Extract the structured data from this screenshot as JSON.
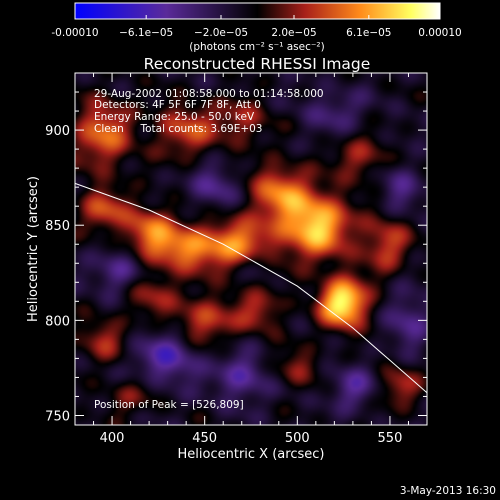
{
  "chart_data": {
    "type": "heatmap",
    "title": "Reconstructed RHESSI Image",
    "xlabel": "Heliocentric X (arcsec)",
    "ylabel": "Heliocentric Y (arcsec)",
    "xlim": [
      380,
      570
    ],
    "ylim": [
      745,
      930
    ],
    "x_ticks": [
      400,
      450,
      500,
      550
    ],
    "y_ticks": [
      750,
      800,
      850,
      900
    ],
    "colorbar": {
      "range": [
        -0.0001,
        0.0001
      ],
      "tick_values": [
        -0.0001,
        -6.1e-05,
        -2e-05,
        2e-05,
        6.1e-05,
        0.0001
      ],
      "tick_labels": [
        "-0.00010",
        "−6.1e−05",
        "−2.0e−05",
        "2.0e−05",
        "6.1e−05",
        "0.00010"
      ],
      "unit_label": "(photons cm⁻² s⁻¹ asec⁻²)",
      "colors": [
        "#0000ff",
        "#5a2a9a",
        "#000000",
        "#a8201a",
        "#ff8a1a",
        "#ffff60",
        "#ffffff"
      ]
    },
    "info_lines": [
      "29-Aug-2002 01:08:58.000 to 01:14:58.000",
      "Detectors: 4F 5F 6F 7F 8F, Att 0",
      "Energy Range: 25.0 - 50.0 keV",
      "Clean     Total counts: 3.69E+03"
    ],
    "peak_label": "Position of Peak = [526,809]",
    "peak": {
      "x": 526,
      "y": 809
    },
    "limb_curve": [
      [
        380,
        872
      ],
      [
        420,
        858
      ],
      [
        460,
        840
      ],
      [
        500,
        818
      ],
      [
        530,
        796
      ],
      [
        550,
        779
      ],
      [
        570,
        762
      ]
    ],
    "features": [
      {
        "x": 525,
        "y": 809,
        "amp": 1.0,
        "sx": 9,
        "sy": 9
      },
      {
        "x": 510,
        "y": 850,
        "amp": 0.85,
        "sx": 13,
        "sy": 12
      },
      {
        "x": 490,
        "y": 868,
        "amp": 0.55,
        "sx": 11,
        "sy": 10
      },
      {
        "x": 470,
        "y": 840,
        "amp": 0.55,
        "sx": 14,
        "sy": 10
      },
      {
        "x": 440,
        "y": 838,
        "amp": 0.6,
        "sx": 14,
        "sy": 8
      },
      {
        "x": 420,
        "y": 848,
        "amp": 0.5,
        "sx": 10,
        "sy": 9
      },
      {
        "x": 395,
        "y": 898,
        "amp": 0.55,
        "sx": 11,
        "sy": 13
      },
      {
        "x": 395,
        "y": 858,
        "amp": 0.45,
        "sx": 9,
        "sy": 8
      },
      {
        "x": 440,
        "y": 900,
        "amp": 0.45,
        "sx": 12,
        "sy": 10
      },
      {
        "x": 470,
        "y": 905,
        "amp": 0.35,
        "sx": 10,
        "sy": 8
      },
      {
        "x": 535,
        "y": 885,
        "amp": 0.35,
        "sx": 10,
        "sy": 8
      },
      {
        "x": 548,
        "y": 840,
        "amp": 0.45,
        "sx": 9,
        "sy": 10
      },
      {
        "x": 450,
        "y": 800,
        "amp": 0.45,
        "sx": 12,
        "sy": 9
      },
      {
        "x": 480,
        "y": 805,
        "amp": 0.35,
        "sx": 9,
        "sy": 8
      },
      {
        "x": 420,
        "y": 815,
        "amp": 0.35,
        "sx": 10,
        "sy": 9
      },
      {
        "x": 395,
        "y": 790,
        "amp": 0.35,
        "sx": 9,
        "sy": 8
      },
      {
        "x": 500,
        "y": 775,
        "amp": 0.3,
        "sx": 9,
        "sy": 7
      },
      {
        "x": 555,
        "y": 765,
        "amp": 0.35,
        "sx": 8,
        "sy": 8
      },
      {
        "x": 410,
        "y": 760,
        "amp": 0.25,
        "sx": 10,
        "sy": 7
      },
      {
        "x": 455,
        "y": 870,
        "amp": -0.35,
        "sx": 9,
        "sy": 8
      },
      {
        "x": 405,
        "y": 825,
        "amp": -0.4,
        "sx": 10,
        "sy": 8
      },
      {
        "x": 430,
        "y": 780,
        "amp": -0.45,
        "sx": 12,
        "sy": 10
      },
      {
        "x": 470,
        "y": 770,
        "amp": -0.4,
        "sx": 10,
        "sy": 9
      },
      {
        "x": 530,
        "y": 765,
        "amp": -0.35,
        "sx": 9,
        "sy": 8
      },
      {
        "x": 560,
        "y": 800,
        "amp": -0.35,
        "sx": 8,
        "sy": 10
      },
      {
        "x": 555,
        "y": 870,
        "amp": -0.3,
        "sx": 8,
        "sy": 9
      },
      {
        "x": 520,
        "y": 910,
        "amp": -0.25,
        "sx": 12,
        "sy": 8
      },
      {
        "x": 480,
        "y": 830,
        "amp": -0.25,
        "sx": 7,
        "sy": 6
      }
    ]
  },
  "footer": {
    "date": "3-May-2013 16:30"
  }
}
